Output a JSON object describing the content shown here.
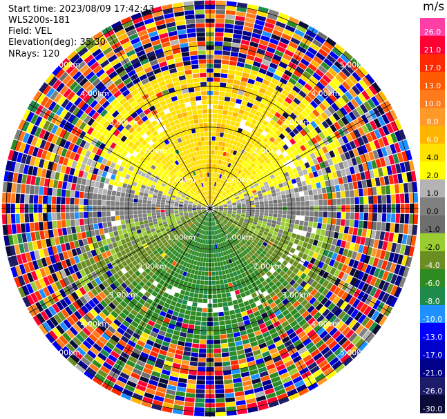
{
  "info": {
    "start_time": "Start time: 2023/08/09 17:42:43",
    "instrument": "WLS200s-181",
    "field": "Field: VEL",
    "elevation": "Elevation(deg): 35.30",
    "nrays": "NRays: 120"
  },
  "colorbar": {
    "unit": "m/s",
    "labels": [
      "26.0",
      "21.0",
      "17.0",
      "13.0",
      "10.0",
      "8.0",
      "6.0",
      "4.0",
      "2.0",
      "1.0",
      "0.0",
      "-1.0",
      "-2.0",
      "-4.0",
      "-6.0",
      "-8.0",
      "-10.0",
      "-13.0",
      "-17.0",
      "-21.0",
      "-26.0",
      "-30.0"
    ],
    "colors": [
      "#ff3fa6",
      "#ff0033",
      "#ff2a00",
      "#ff5a00",
      "#ff7a1a",
      "#ff9a2a",
      "#ffb400",
      "#ffe100",
      "#ffff00",
      "#b4b4b4",
      "#808080",
      "#6e6e6e",
      "#9acd32",
      "#6b8e23",
      "#2e8b22",
      "#1e8b4c",
      "#1e90ff",
      "#0000ff",
      "#0000cd",
      "#00008b",
      "#1c1c6b",
      "#0b0b3a"
    ]
  },
  "chart_data": {
    "type": "polar-ppi",
    "field": "VEL",
    "units": "m/s",
    "elevation_deg": 35.3,
    "n_rays": 120,
    "range_ring_labels": [
      "1.00km",
      "2.00km",
      "3.00km",
      "4.00km",
      "5.00km"
    ],
    "range_rings_km": [
      1,
      2,
      3,
      4,
      5
    ],
    "spoke_angles_deg": [
      0,
      30,
      60,
      90,
      120,
      150,
      180,
      210,
      240,
      270,
      300,
      330
    ],
    "color_scale": {
      "min": -30.0,
      "max": 26.0,
      "ticks": [
        26.0,
        21.0,
        17.0,
        13.0,
        10.0,
        8.0,
        6.0,
        4.0,
        2.0,
        1.0,
        0.0,
        -1.0,
        -2.0,
        -4.0,
        -6.0,
        -8.0,
        -10.0,
        -13.0,
        -17.0,
        -21.0,
        -26.0,
        -30.0
      ]
    },
    "pattern": {
      "near_north": "positive 2-6 m/s (yellow/orange)",
      "near_south": "negative -2 to -6 m/s (olive/green)",
      "east_west_band": "~0 m/s (gray)",
      "outer_range": "noise, all colors"
    }
  }
}
